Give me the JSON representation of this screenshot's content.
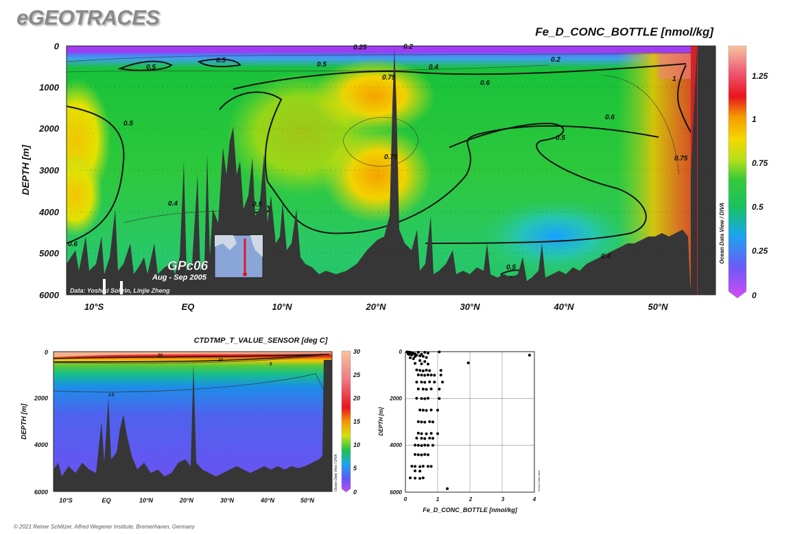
{
  "brand": "eGEOTRACES",
  "credit": "© 2021 Reiner Schlitzer, Alfred Wegener Institute, Bremerhaven, Germany",
  "chart_data": [
    {
      "type": "heatmap",
      "title": "Fe_D_CONC_BOTTLE [nmol/kg]",
      "ylabel": "DEPTH [m]",
      "xlabel": "",
      "x_ticks": [
        "10°S",
        "EQ",
        "10°N",
        "20°N",
        "30°N",
        "40°N",
        "50°N"
      ],
      "x_tick_values": [
        -10,
        0,
        10,
        20,
        30,
        40,
        50
      ],
      "y_ticks": [
        "0",
        "1000",
        "2000",
        "3000",
        "4000",
        "5000",
        "6000"
      ],
      "xlim": [
        -14,
        56
      ],
      "ylim": [
        6000,
        0
      ],
      "colorbar_ticks": [
        "1.25",
        "1",
        "0.75",
        "0.5",
        "0.25",
        "0"
      ],
      "colorbar_range": [
        0,
        1.4
      ],
      "contour_labels": [
        "0.25",
        "0.2",
        "0.5",
        "0.5",
        "0.5",
        "0.4",
        "0.2",
        "0.75",
        "0.6",
        "1",
        "0.5",
        "0.6",
        "0.5",
        "0.75",
        "0.4",
        "0.5",
        "0.6",
        "0.4",
        "0.5",
        "0.75"
      ],
      "side_label": "Ocean Data View / DIVA",
      "data_credit": "Data: Yoshiki Sohrin, Linjie Zheng",
      "cruise": "GPc06",
      "cruise_dates": "Aug - Sep 2005",
      "colors": {
        "low": "#b13cf7",
        "mid": "#18c23a",
        "high": "#e8141e",
        "top": "#f5c09e",
        "land": "#363636"
      }
    },
    {
      "type": "heatmap",
      "title": "CTDTMP_T_VALUE_SENSOR [deg C]",
      "ylabel": "DEPTH [m]",
      "xlabel": "",
      "x_ticks": [
        "10°S",
        "EQ",
        "10°N",
        "20°N",
        "30°N",
        "40°N",
        "50°N"
      ],
      "x_tick_values": [
        -10,
        0,
        10,
        20,
        30,
        40,
        50
      ],
      "y_ticks": [
        "0",
        "2000",
        "4000",
        "6000"
      ],
      "xlim": [
        -14,
        56
      ],
      "ylim": [
        6000,
        0
      ],
      "colorbar_ticks": [
        "30",
        "25",
        "20",
        "15",
        "10",
        "5",
        "0"
      ],
      "colorbar_range": [
        0,
        30
      ],
      "contour_labels": [
        "20",
        "10",
        "5",
        "2.5"
      ],
      "side_label": "Ocean Data View / DIVA"
    },
    {
      "type": "scatter",
      "title": "",
      "xlabel": "Fe_D_CONC_BOTTLE [nmol/kg]",
      "ylabel": "DEPTH [m]",
      "x_ticks": [
        "0",
        "1",
        "2",
        "3",
        "4"
      ],
      "y_ticks": [
        "0",
        "2000",
        "4000",
        "6000"
      ],
      "xlim": [
        0,
        4
      ],
      "ylim": [
        6000,
        0
      ],
      "side_label": "Ocean Data View",
      "points": [
        [
          0.05,
          10
        ],
        [
          0.1,
          20
        ],
        [
          0.15,
          30
        ],
        [
          0.2,
          50
        ],
        [
          0.25,
          75
        ],
        [
          0.3,
          100
        ],
        [
          0.12,
          120
        ],
        [
          0.35,
          150
        ],
        [
          0.45,
          180
        ],
        [
          0.55,
          200
        ],
        [
          0.6,
          30
        ],
        [
          0.7,
          60
        ],
        [
          0.2,
          140
        ],
        [
          0.08,
          90
        ],
        [
          0.4,
          25
        ],
        [
          0.5,
          110
        ],
        [
          0.3,
          210
        ],
        [
          0.65,
          250
        ],
        [
          0.15,
          260
        ],
        [
          0.25,
          300
        ],
        [
          1.05,
          10
        ],
        [
          3.85,
          150
        ],
        [
          0.45,
          380
        ],
        [
          0.6,
          420
        ],
        [
          1.95,
          480
        ],
        [
          0.3,
          500
        ],
        [
          0.5,
          520
        ],
        [
          0.7,
          530
        ],
        [
          0.35,
          780
        ],
        [
          0.45,
          800
        ],
        [
          0.55,
          820
        ],
        [
          0.65,
          790
        ],
        [
          0.75,
          810
        ],
        [
          1.1,
          800
        ],
        [
          0.4,
          990
        ],
        [
          0.5,
          1000
        ],
        [
          0.6,
          1010
        ],
        [
          0.7,
          990
        ],
        [
          0.8,
          1000
        ],
        [
          0.9,
          1005
        ],
        [
          1.1,
          1000
        ],
        [
          0.35,
          1300
        ],
        [
          0.5,
          1300
        ],
        [
          0.6,
          1310
        ],
        [
          0.75,
          1290
        ],
        [
          1.15,
          1300
        ],
        [
          0.9,
          1300
        ],
        [
          0.4,
          1590
        ],
        [
          0.55,
          1600
        ],
        [
          0.65,
          1610
        ],
        [
          0.8,
          1590
        ],
        [
          1.05,
          1600
        ],
        [
          0.35,
          1990
        ],
        [
          0.5,
          2000
        ],
        [
          0.6,
          2010
        ],
        [
          0.7,
          1990
        ],
        [
          1.05,
          2000
        ],
        [
          0.45,
          2490
        ],
        [
          0.55,
          2500
        ],
        [
          0.65,
          2510
        ],
        [
          0.8,
          2490
        ],
        [
          1.0,
          2500
        ],
        [
          0.4,
          2990
        ],
        [
          0.5,
          3000
        ],
        [
          0.6,
          3010
        ],
        [
          0.75,
          2990
        ],
        [
          0.85,
          3000
        ],
        [
          0.4,
          3480
        ],
        [
          0.5,
          3500
        ],
        [
          0.65,
          3510
        ],
        [
          0.8,
          3490
        ],
        [
          1.0,
          3500
        ],
        [
          0.35,
          3690
        ],
        [
          0.5,
          3700
        ],
        [
          0.6,
          3710
        ],
        [
          0.75,
          3690
        ],
        [
          0.85,
          3700
        ],
        [
          0.3,
          3990
        ],
        [
          0.4,
          4000
        ],
        [
          0.5,
          4010
        ],
        [
          0.6,
          3990
        ],
        [
          0.7,
          4000
        ],
        [
          0.85,
          4000
        ],
        [
          0.3,
          4390
        ],
        [
          0.4,
          4400
        ],
        [
          0.5,
          4410
        ],
        [
          0.6,
          4390
        ],
        [
          0.7,
          4400
        ],
        [
          0.2,
          4890
        ],
        [
          0.3,
          4900
        ],
        [
          0.45,
          4910
        ],
        [
          0.55,
          4890
        ],
        [
          0.7,
          4900
        ],
        [
          0.8,
          4900
        ],
        [
          0.3,
          5090
        ],
        [
          0.45,
          5100
        ],
        [
          0.15,
          5390
        ],
        [
          0.3,
          5400
        ],
        [
          0.45,
          5410
        ],
        [
          0.55,
          5390
        ],
        [
          1.3,
          5850
        ]
      ]
    }
  ]
}
